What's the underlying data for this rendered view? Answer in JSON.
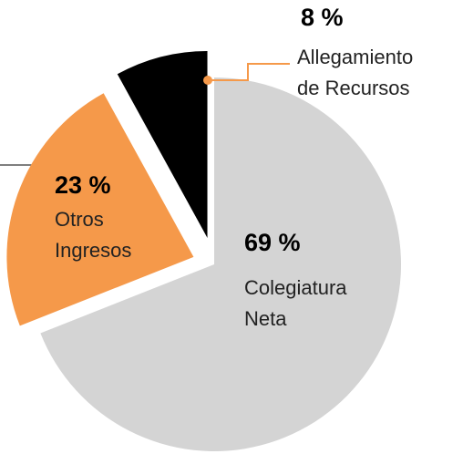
{
  "chart_data": {
    "type": "pie",
    "categories": [
      "Colegiatura Neta",
      "Otros Ingresos",
      "Allegamiento de Recursos"
    ],
    "values": [
      69,
      23,
      8
    ],
    "value_labels": [
      "69 %",
      "23 %",
      "8 %"
    ],
    "colors": [
      "#d4d4d4",
      "#f5994a",
      "#000000"
    ]
  }
}
